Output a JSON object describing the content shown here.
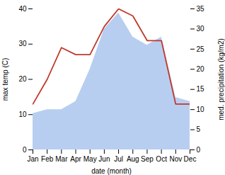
{
  "chart_data": {
    "type": "line",
    "xlabel": "date (month)",
    "ylabel": "max temp (C)",
    "y2label": "med. precipitation (kg/m2)",
    "categories": [
      "Jan",
      "Feb",
      "Mar",
      "Apr",
      "May",
      "Jun",
      "Jul",
      "Aug",
      "Sep",
      "Oct",
      "Nov",
      "Dec"
    ],
    "series": [
      {
        "type": "area",
        "axis": "y2",
        "color": "#b8cef0",
        "values": [
          9,
          10,
          10,
          12,
          20,
          30,
          34,
          28,
          26,
          28,
          13,
          12
        ]
      },
      {
        "type": "line",
        "color": "#c0392b",
        "values": [
          13,
          20,
          29,
          27,
          27,
          35,
          40,
          38,
          31,
          31,
          13,
          13
        ]
      }
    ],
    "ylim": [
      0,
      40
    ],
    "yticks": [
      0,
      10,
      20,
      30,
      40
    ],
    "y2lim": [
      0,
      35
    ],
    "y2ticks": [
      0,
      5,
      10,
      15,
      20,
      25,
      30,
      35
    ]
  }
}
